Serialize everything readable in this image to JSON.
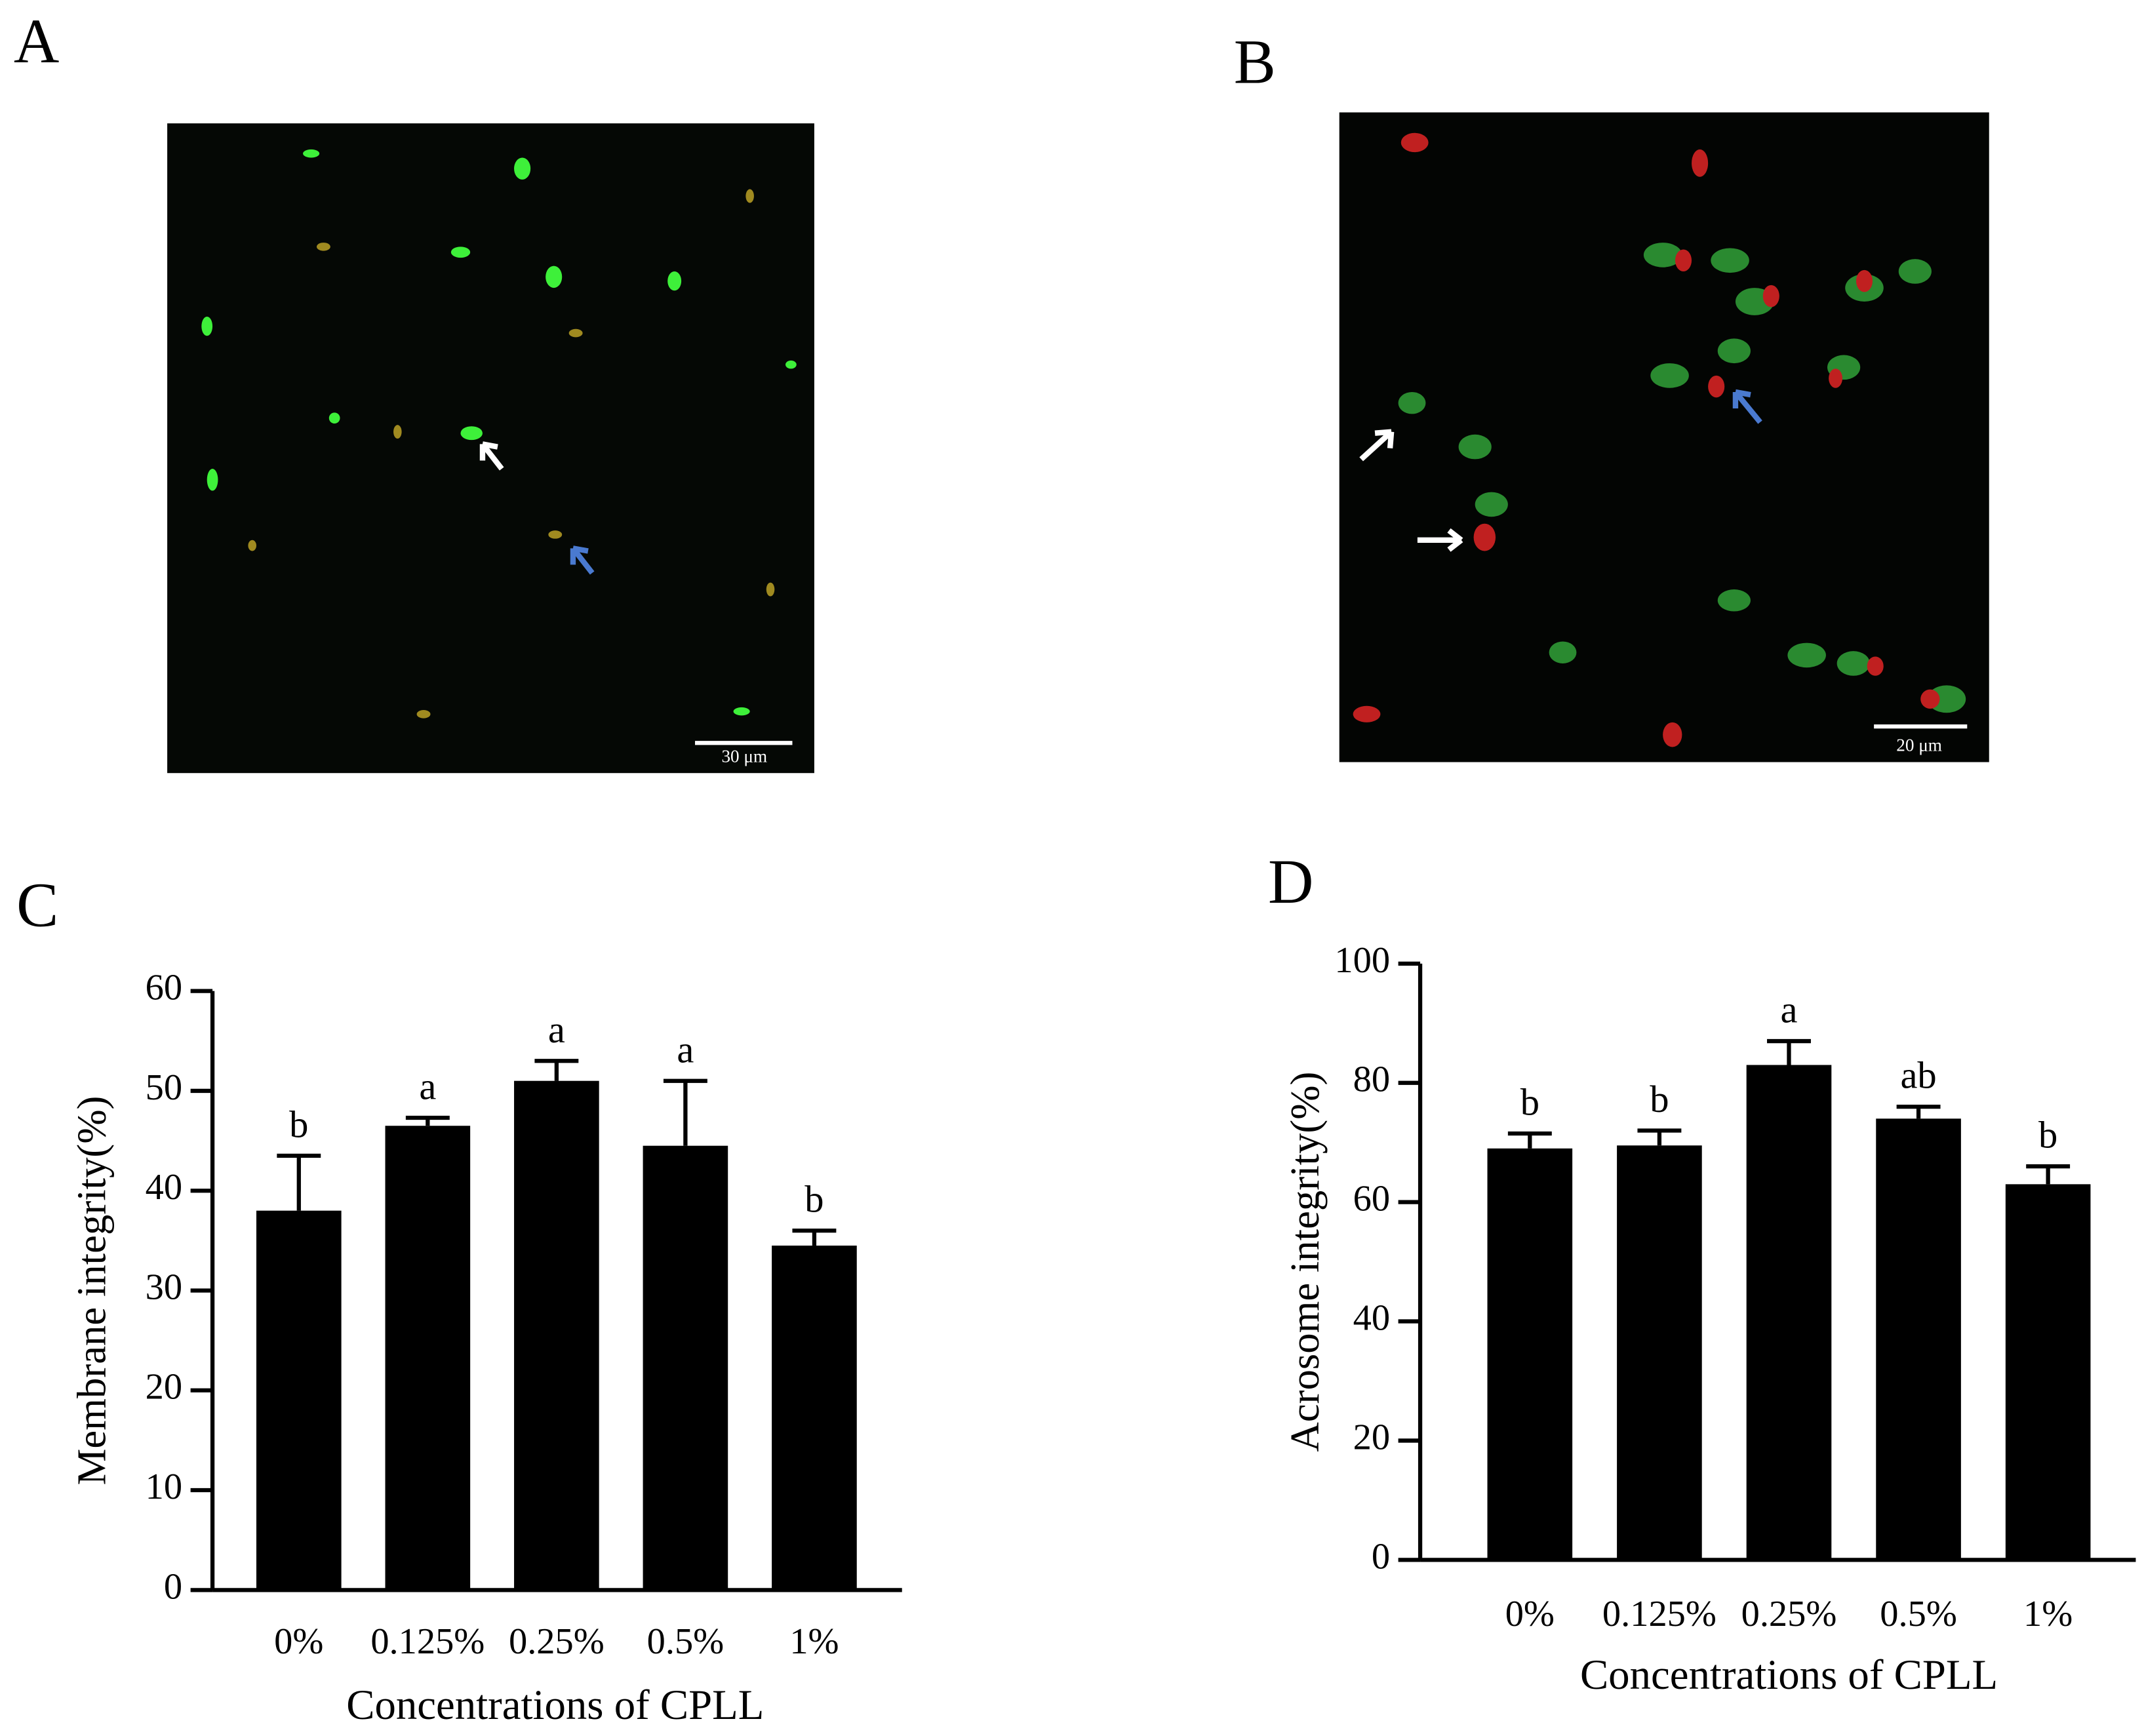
{
  "panel_labels": [
    "A",
    "B",
    "C",
    "D"
  ],
  "scale_bars": [
    "30 μm",
    "20 μm"
  ],
  "chart_data": [
    {
      "type": "bar",
      "x_label": "Concentrations of CPLL",
      "y_label": "Membrane integrity(%)",
      "categories": [
        "0%",
        "0.125%",
        "0.25%",
        "0.5%",
        "1%"
      ],
      "values": [
        38,
        46.5,
        51,
        44.5,
        34.5
      ],
      "errors": [
        5.5,
        0.8,
        2,
        6.5,
        1.5
      ],
      "annotations": [
        "b",
        "a",
        "a",
        "a",
        "b"
      ],
      "color": "#000000",
      "ylim": [
        0,
        60
      ],
      "yticks": [
        0,
        10,
        20,
        30,
        40,
        50,
        60
      ]
    },
    {
      "type": "bar",
      "x_label": "Concentrations of CPLL",
      "y_label": "Acrosome integrity(%)",
      "categories": [
        "0%",
        "0.125%",
        "0.25%",
        "0.5%",
        "1%"
      ],
      "values": [
        69,
        69.5,
        83,
        74,
        63
      ],
      "errors": [
        2.5,
        2.5,
        4,
        2,
        3
      ],
      "annotations": [
        "b",
        "b",
        "a",
        "ab",
        "b"
      ],
      "color": "#000000",
      "ylim": [
        0,
        100
      ],
      "yticks": [
        0,
        20,
        40,
        60,
        80,
        100
      ]
    }
  ]
}
